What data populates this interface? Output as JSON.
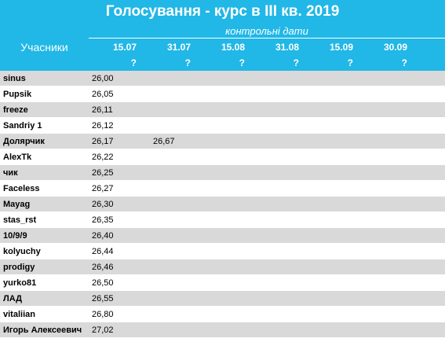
{
  "title": "Голосування - курс в III кв. 2019",
  "participants_header": "Учасники",
  "subtitle": "контрольні дати",
  "dates": [
    "15.07",
    "31.07",
    "15.08",
    "31.08",
    "15.09",
    "30.09"
  ],
  "placeholders": [
    "?",
    "?",
    "?",
    "?",
    "?",
    "?"
  ],
  "rows": [
    {
      "name": "sinus",
      "values": [
        "26,00",
        "",
        "",
        "",
        "",
        ""
      ]
    },
    {
      "name": "Pupsik",
      "values": [
        "26,05",
        "",
        "",
        "",
        "",
        ""
      ]
    },
    {
      "name": "freeze",
      "values": [
        "26,11",
        "",
        "",
        "",
        "",
        ""
      ]
    },
    {
      "name": "Sandriy 1",
      "values": [
        "26,12",
        "",
        "",
        "",
        "",
        ""
      ]
    },
    {
      "name": "Долярчик",
      "values": [
        "26,17",
        "26,67",
        "",
        "",
        "",
        ""
      ]
    },
    {
      "name": "AlexTk",
      "values": [
        "26,22",
        "",
        "",
        "",
        "",
        ""
      ]
    },
    {
      "name": "чик",
      "values": [
        "26,25",
        "",
        "",
        "",
        "",
        ""
      ]
    },
    {
      "name": "Faceless",
      "values": [
        "26,27",
        "",
        "",
        "",
        "",
        ""
      ]
    },
    {
      "name": "Mayag",
      "values": [
        "26,30",
        "",
        "",
        "",
        "",
        ""
      ]
    },
    {
      "name": "stas_rst",
      "values": [
        "26,35",
        "",
        "",
        "",
        "",
        ""
      ]
    },
    {
      "name": "10/9/9",
      "values": [
        "26,40",
        "",
        "",
        "",
        "",
        ""
      ]
    },
    {
      "name": "kolyuchy",
      "values": [
        "26,44",
        "",
        "",
        "",
        "",
        ""
      ]
    },
    {
      "name": "prodigy",
      "values": [
        "26,46",
        "",
        "",
        "",
        "",
        ""
      ]
    },
    {
      "name": "yurko81",
      "values": [
        "26,50",
        "",
        "",
        "",
        "",
        ""
      ]
    },
    {
      "name": "ЛАД",
      "values": [
        "26,55",
        "",
        "",
        "",
        "",
        ""
      ]
    },
    {
      "name": "vitaliian",
      "values": [
        "26,80",
        "",
        "",
        "",
        "",
        ""
      ]
    },
    {
      "name": "Игорь Алексеевич",
      "values": [
        "27,02",
        "",
        "",
        "",
        "",
        ""
      ]
    }
  ],
  "colors": {
    "header": "#21b7e6",
    "row_alt": "#d9d9d9"
  }
}
